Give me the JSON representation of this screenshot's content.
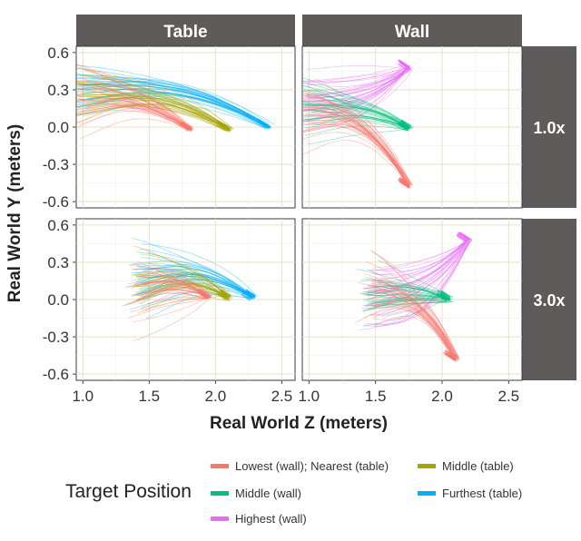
{
  "chart_data": {
    "type": "line",
    "description_facets": {
      "columns": [
        "Table",
        "Wall"
      ],
      "rows": [
        "1.0x",
        "3.0x"
      ]
    },
    "xlabel": "Real World Z (meters)",
    "ylabel": "Real World Y (meters)",
    "x_ticks": [
      "1.0",
      "1.5",
      "2.0",
      "2.5"
    ],
    "y_ticks": [
      "0.6",
      "0.3",
      "0.0",
      "-0.3",
      "-0.6"
    ],
    "xlim": [
      0.95,
      2.6
    ],
    "ylim": [
      -0.65,
      0.65
    ],
    "grid": true,
    "legend_title": "Target Position",
    "legend_position": "bottom",
    "series": [
      {
        "name": "Lowest (wall); Nearest (table)",
        "color": "#F8766D"
      },
      {
        "name": "Middle (table)",
        "color": "#A3A500"
      },
      {
        "name": "Middle (wall)",
        "color": "#00BF7D"
      },
      {
        "name": "Furthest (table)",
        "color": "#00B0F6"
      },
      {
        "name": "Highest (wall)",
        "color": "#E76BF3"
      }
    ],
    "panels": [
      {
        "column": "Table",
        "row": "1.0x",
        "trajectories": [
          {
            "series": "Furthest (table)",
            "start": [
              0.95,
              0.28
            ],
            "end": [
              2.4,
              0.0
            ],
            "peak": 0.4
          },
          {
            "series": "Middle (table)",
            "start": [
              0.95,
              0.22
            ],
            "end": [
              2.1,
              -0.02
            ],
            "peak": 0.3
          },
          {
            "series": "Lowest (wall); Nearest (table)",
            "start": [
              0.95,
              0.2
            ],
            "end": [
              1.81,
              -0.02
            ],
            "peak": 0.26
          }
        ]
      },
      {
        "column": "Wall",
        "row": "1.0x",
        "trajectories": [
          {
            "series": "Highest (wall)",
            "start": [
              0.95,
              0.2
            ],
            "end": [
              1.75,
              0.48
            ],
            "peak": 0.48
          },
          {
            "series": "Middle (wall)",
            "start": [
              0.95,
              0.15
            ],
            "end": [
              1.75,
              -0.01
            ],
            "peak": 0.18
          },
          {
            "series": "Lowest (wall); Nearest (table)",
            "start": [
              0.95,
              0.1
            ],
            "end": [
              1.75,
              -0.47
            ],
            "peak": 0.12
          }
        ]
      },
      {
        "column": "Table",
        "row": "3.0x",
        "trajectories": [
          {
            "series": "Furthest (table)",
            "start": [
              1.4,
              0.16
            ],
            "end": [
              2.28,
              0.02
            ],
            "peak": 0.3
          },
          {
            "series": "Middle (table)",
            "start": [
              1.4,
              0.12
            ],
            "end": [
              2.1,
              0.02
            ],
            "peak": 0.24
          },
          {
            "series": "Lowest (wall); Nearest (table)",
            "start": [
              1.4,
              0.08
            ],
            "end": [
              1.95,
              0.02
            ],
            "peak": 0.18
          }
        ]
      },
      {
        "column": "Wall",
        "row": "3.0x",
        "trajectories": [
          {
            "series": "Highest (wall)",
            "start": [
              1.45,
              0.0
            ],
            "end": [
              2.2,
              0.48
            ],
            "peak": 0.48
          },
          {
            "series": "Middle (wall)",
            "start": [
              1.45,
              0.05
            ],
            "end": [
              2.05,
              0.0
            ],
            "peak": 0.1
          },
          {
            "series": "Lowest (wall); Nearest (table)",
            "start": [
              1.45,
              0.05
            ],
            "end": [
              2.1,
              -0.48
            ],
            "peak": 0.06
          }
        ]
      }
    ]
  }
}
